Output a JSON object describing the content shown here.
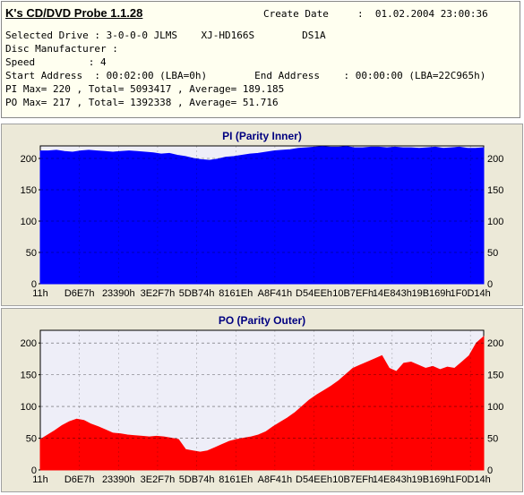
{
  "info": {
    "title": "K's CD/DVD Probe 1.1.28",
    "create_date_label": "Create Date",
    "create_date_value": ":  01.02.2004 23:00:36",
    "line1": "Selected Drive : 3-0-0-0 JLMS    XJ-HD166S        DS1A",
    "line2": "Disc Manufacturer :",
    "line3": "Speed         : 4",
    "line4": "Start Address  : 00:02:00 (LBA=0h)        End Address    : 00:00:00 (LBA=22C965h)",
    "line5": "PI Max= 220 , Total= 5093417 , Average= 189.185",
    "line6": "PO Max= 217 , Total= 1392338 , Average= 51.716"
  },
  "colors": {
    "pi_fill": "#0000ff",
    "po_fill": "#ff0000",
    "plot_bg": "#eeeef8",
    "title": "#000080"
  },
  "chart_data": [
    {
      "type": "area",
      "title": "PI (Parity Inner)",
      "xlabel": "",
      "ylabel": "",
      "ylim": [
        0,
        220
      ],
      "yticks": [
        0,
        50,
        100,
        150,
        200
      ],
      "x_tick_labels": [
        "11h",
        "D6E7h",
        "23390h",
        "3E2F7h",
        "5DB74h",
        "8161Eh",
        "A8F41h",
        "D54EEh",
        "10B7EFh",
        "14E843h",
        "19B169h",
        "1F0D14h"
      ],
      "grid": true,
      "series": [
        {
          "values": [
            212,
            212,
            213,
            211,
            210,
            212,
            213,
            212,
            211,
            210,
            211,
            212,
            211,
            210,
            209,
            207,
            208,
            205,
            203,
            200,
            198,
            197,
            199,
            202,
            203,
            205,
            207,
            208,
            210,
            212,
            213,
            214,
            216,
            217,
            218,
            219,
            218,
            218,
            219,
            217,
            217,
            218,
            218,
            217,
            218,
            217,
            217,
            216,
            217,
            218,
            216,
            217,
            218,
            216,
            216,
            217
          ]
        }
      ]
    },
    {
      "type": "area",
      "title": "PO (Parity Outer)",
      "xlabel": "",
      "ylabel": "",
      "ylim": [
        0,
        220
      ],
      "yticks": [
        0,
        50,
        100,
        150,
        200
      ],
      "x_tick_labels": [
        "11h",
        "D6E7h",
        "23390h",
        "3E2F7h",
        "5DB74h",
        "8161Eh",
        "A8F41h",
        "D54EEh",
        "10B7EFh",
        "14E843h",
        "19B169h",
        "1F0D14h"
      ],
      "grid": true,
      "series": [
        {
          "values": [
            48,
            55,
            62,
            70,
            76,
            80,
            78,
            72,
            68,
            63,
            58,
            57,
            55,
            54,
            53,
            52,
            53,
            52,
            50,
            48,
            32,
            30,
            28,
            30,
            35,
            40,
            45,
            48,
            50,
            52,
            55,
            60,
            68,
            75,
            82,
            90,
            100,
            110,
            118,
            125,
            132,
            140,
            150,
            160,
            165,
            170,
            175,
            180,
            160,
            155,
            168,
            170,
            165,
            160,
            163,
            158,
            162,
            160,
            170,
            180,
            200,
            210
          ]
        }
      ]
    }
  ]
}
